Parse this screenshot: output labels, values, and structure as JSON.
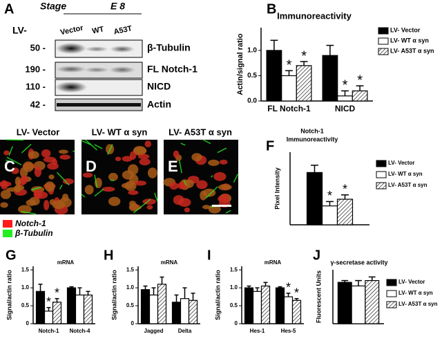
{
  "blot": {
    "panel": "A",
    "stage_label": "Stage",
    "stage": "E 8",
    "lv_label": "LV-",
    "lanes": [
      "Vector",
      "WT",
      "A53T"
    ],
    "rows": [
      {
        "size": "50 -",
        "protein": "β-Tubulin"
      },
      {
        "size": "190 -",
        "protein": "FL Notch-1"
      },
      {
        "size": "110 -",
        "protein": "NICD"
      },
      {
        "size": "42 -",
        "protein": "Actin"
      }
    ]
  },
  "images": {
    "panels": [
      {
        "panel": "C",
        "label": "LV- Vector"
      },
      {
        "panel": "D",
        "label": "LV- WT α syn"
      },
      {
        "panel": "E",
        "label": "LV- A53T α syn"
      }
    ],
    "legend": [
      {
        "name": "Notch-1",
        "color": "#ff1a1a"
      },
      {
        "name": "β-Tubulin",
        "color": "#22ee22"
      }
    ]
  },
  "chart_data": [
    {
      "type": "bar",
      "panel": "B",
      "title": [
        "Immunoreactivity"
      ],
      "y_label": "Actin/signal ratio",
      "categories": [
        "FL Notch-1",
        "NICD"
      ],
      "series": [
        {
          "name": "LV- Vector",
          "color": "#000000",
          "hatch": false,
          "values": [
            1.0,
            0.9
          ],
          "errors": [
            0.2,
            0.2
          ]
        },
        {
          "name": "LV- WT α syn",
          "color": "#ffffff",
          "hatch": false,
          "values": [
            0.5,
            0.1
          ],
          "errors": [
            0.1,
            0.1
          ]
        },
        {
          "name": "LV- A53T α syn",
          "color": "#ffffff",
          "hatch": true,
          "values": [
            0.7,
            0.2
          ],
          "errors": [
            0.08,
            0.1
          ]
        }
      ],
      "ylim": [
        0,
        1.45
      ],
      "yticks": [
        {
          "value": 0,
          "label": "0.0"
        },
        0.5,
        {
          "value": 1,
          "label": "1.0"
        }
      ],
      "legend": "right",
      "annotations": [
        {
          "text": "*",
          "series": 1,
          "category": 0
        },
        {
          "text": "*",
          "series": 2,
          "category": 0
        },
        {
          "text": "*",
          "series": 1,
          "category": 1
        },
        {
          "text": "*",
          "series": 2,
          "category": 1
        }
      ]
    },
    {
      "type": "bar",
      "panel": "F",
      "title": [
        "Notch-1",
        "Immunoreactivity"
      ],
      "y_label": "Pixel Intensity",
      "categories": [
        null
      ],
      "series": [
        {
          "name": "LV- Vector",
          "color": "#000000",
          "hatch": false,
          "values": [
            180
          ],
          "errors": [
            25
          ]
        },
        {
          "name": "LV- WT α syn",
          "color": "#ffffff",
          "hatch": false,
          "values": [
            65
          ],
          "errors": [
            15
          ]
        },
        {
          "name": "LV- A53T α syn",
          "color": "#ffffff",
          "hatch": true,
          "values": [
            88
          ],
          "errors": [
            15
          ]
        }
      ],
      "ylim": [
        0,
        250
      ],
      "legend": "right",
      "annotations": [
        {
          "text": "*",
          "series": 1,
          "category": 0
        },
        {
          "text": "*",
          "series": 2,
          "category": 0
        }
      ]
    },
    {
      "type": "bar",
      "panel": "G",
      "title": [
        "mRNA"
      ],
      "y_label": "Signal/actin ratio",
      "categories": [
        "Notch-1",
        "Notch-4"
      ],
      "series": [
        {
          "color": "#000000",
          "hatch": false,
          "values": [
            0.9,
            1.0
          ],
          "errors": [
            0.2,
            0.03
          ]
        },
        {
          "color": "#ffffff",
          "hatch": false,
          "values": [
            0.35,
            0.8
          ],
          "errors": [
            0.1,
            0.2
          ]
        },
        {
          "color": "#ffffff",
          "hatch": true,
          "values": [
            0.6,
            0.8
          ],
          "errors": [
            0.1,
            0.1
          ]
        }
      ],
      "ylim": [
        0,
        1.6
      ],
      "yticks": [
        0,
        0.5,
        {
          "value": 1,
          "label": "1.0"
        },
        1.5
      ],
      "annotations": [
        {
          "text": "*",
          "series": 1,
          "category": 0
        },
        {
          "text": "*",
          "series": 2,
          "category": 0
        }
      ]
    },
    {
      "type": "bar",
      "panel": "H",
      "title": [
        "mRNA"
      ],
      "y_label": "Signal/actin ratio",
      "categories": [
        "Jagged",
        "Delta"
      ],
      "series": [
        {
          "color": "#000000",
          "hatch": false,
          "values": [
            0.95,
            0.6
          ],
          "errors": [
            0.1,
            0.2
          ]
        },
        {
          "color": "#ffffff",
          "hatch": false,
          "values": [
            0.8,
            0.7
          ],
          "errors": [
            0.2,
            0.3
          ]
        },
        {
          "color": "#ffffff",
          "hatch": true,
          "values": [
            1.1,
            0.65
          ],
          "errors": [
            0.2,
            0.2
          ]
        }
      ],
      "ylim": [
        0,
        1.6
      ],
      "yticks": [
        0,
        0.5,
        {
          "value": 1,
          "label": "1.0"
        },
        1.5
      ]
    },
    {
      "type": "bar",
      "panel": "I",
      "title": [
        "mRNA"
      ],
      "y_label": "Signal/actin ratio",
      "categories": [
        "Hes-1",
        "Hes-5"
      ],
      "series": [
        {
          "color": "#000000",
          "hatch": false,
          "values": [
            1.0,
            1.0
          ],
          "errors": [
            0.05,
            0.03
          ]
        },
        {
          "color": "#ffffff",
          "hatch": false,
          "values": [
            0.9,
            0.75
          ],
          "errors": [
            0.1,
            0.1
          ]
        },
        {
          "color": "#ffffff",
          "hatch": true,
          "values": [
            1.05,
            0.65
          ],
          "errors": [
            0.1,
            0.05
          ]
        }
      ],
      "ylim": [
        0,
        1.6
      ],
      "yticks": [
        0,
        0.5,
        {
          "value": 1,
          "label": "1.0"
        },
        1.5
      ],
      "annotations": [
        {
          "text": "*",
          "series": 1,
          "category": 1
        },
        {
          "text": "*",
          "series": 2,
          "category": 1
        }
      ]
    },
    {
      "type": "bar",
      "panel": "J",
      "title": [
        "γ-secretase activity"
      ],
      "y_label": "Fluorescent Units",
      "categories": [
        null
      ],
      "series": [
        {
          "name": "LV- Vector",
          "color": "#000000",
          "hatch": false,
          "values": [
            2300
          ],
          "errors": [
            100
          ]
        },
        {
          "name": "LV- WT α syn",
          "color": "#ffffff",
          "hatch": false,
          "values": [
            2100
          ],
          "errors": [
            300
          ]
        },
        {
          "name": "LV- A53T α syn",
          "color": "#ffffff",
          "hatch": true,
          "values": [
            2400
          ],
          "errors": [
            200
          ]
        }
      ],
      "ylim": [
        0,
        3000
      ],
      "legend": "right"
    }
  ]
}
